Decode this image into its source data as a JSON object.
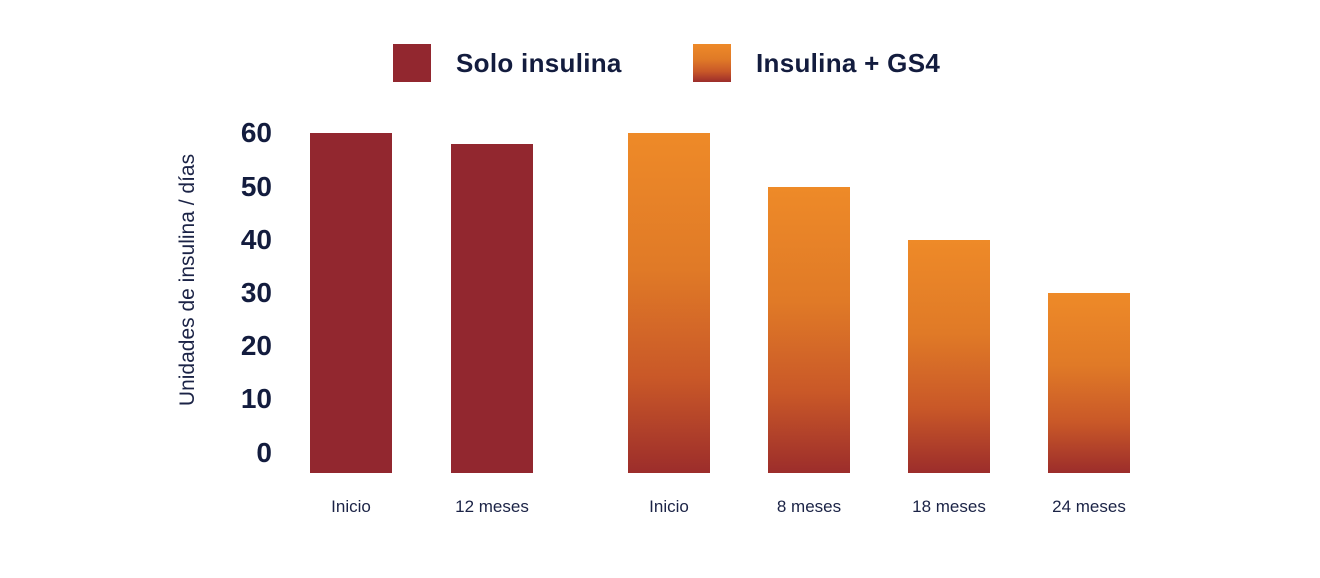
{
  "colors": {
    "background": "#FFFFFF",
    "text_navy": "#131C3E",
    "axis_navy": "#1B2346",
    "solo_insulina_red": "#92272F",
    "gs4_orange_top": "#EE8A28",
    "gs4_orange_mid": "#D2662A",
    "gs4_red_bottom": "#9C2D2B"
  },
  "legend": {
    "items": [
      {
        "label": "Solo insulina",
        "swatch": "solid-dark-red"
      },
      {
        "label": "Insulina + GS4",
        "swatch": "orange-to-red-gradient"
      }
    ]
  },
  "chart_data": {
    "type": "bar",
    "title": "",
    "xlabel": "",
    "ylabel": "Unidades de insulina / días",
    "ylim": [
      0,
      60
    ],
    "yticks": [
      0,
      10,
      20,
      30,
      40,
      50,
      60
    ],
    "grid": false,
    "legend_position": "top",
    "categories": [
      "Inicio",
      "12 meses",
      "Inicio",
      "8 meses",
      "18 meses",
      "24 meses"
    ],
    "series": [
      {
        "name": "Solo insulina",
        "style": "solid",
        "color": "#92272F",
        "categories": [
          "Inicio",
          "12 meses"
        ],
        "values": [
          60,
          58
        ]
      },
      {
        "name": "Insulina + GS4",
        "style": "gradient",
        "gradient_top": "#EE8A28",
        "gradient_bottom": "#9C2D2B",
        "categories": [
          "Inicio",
          "8 meses",
          "18 meses",
          "24 meses"
        ],
        "values": [
          60,
          50,
          40,
          30
        ]
      }
    ],
    "bars": [
      {
        "category": "Inicio",
        "value": 60,
        "series": 0
      },
      {
        "category": "12 meses",
        "value": 58,
        "series": 0
      },
      {
        "category": "Inicio",
        "value": 60,
        "series": 1
      },
      {
        "category": "8 meses",
        "value": 50,
        "series": 1
      },
      {
        "category": "18 meses",
        "value": 40,
        "series": 1
      },
      {
        "category": "24 meses",
        "value": 30,
        "series": 1
      }
    ]
  }
}
